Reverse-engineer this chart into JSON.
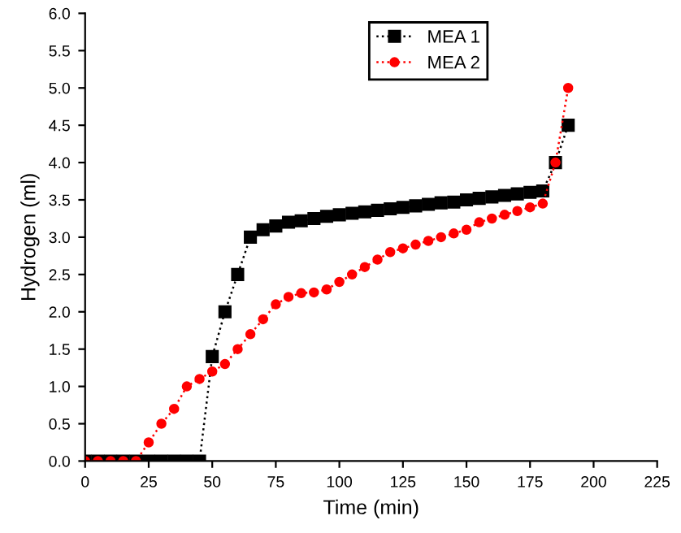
{
  "chart_data": {
    "type": "line",
    "xlabel": "Time (min)",
    "ylabel": "Hydrogen (ml)",
    "x": [
      0,
      5,
      10,
      15,
      20,
      25,
      30,
      35,
      40,
      45,
      50,
      55,
      60,
      65,
      70,
      75,
      80,
      85,
      90,
      95,
      100,
      105,
      110,
      115,
      120,
      125,
      130,
      135,
      140,
      145,
      150,
      155,
      160,
      165,
      170,
      175,
      180,
      185,
      190
    ],
    "series": [
      {
        "name": "MEA 1",
        "color": "#000000",
        "marker": "square",
        "values": [
          0,
          0,
          0,
          0,
          0,
          0,
          0,
          0,
          0,
          0,
          1.4,
          2.0,
          2.5,
          3.0,
          3.1,
          3.15,
          3.2,
          3.22,
          3.25,
          3.28,
          3.3,
          3.32,
          3.34,
          3.36,
          3.38,
          3.4,
          3.42,
          3.44,
          3.46,
          3.47,
          3.5,
          3.52,
          3.54,
          3.56,
          3.58,
          3.6,
          3.62,
          4.0,
          4.5
        ]
      },
      {
        "name": "MEA 2",
        "color": "#ff0000",
        "marker": "circle",
        "values": [
          0,
          0,
          0,
          0,
          0,
          0.25,
          0.5,
          0.7,
          1.0,
          1.1,
          1.2,
          1.3,
          1.5,
          1.7,
          1.9,
          2.1,
          2.2,
          2.25,
          2.26,
          2.3,
          2.4,
          2.5,
          2.6,
          2.7,
          2.8,
          2.85,
          2.9,
          2.95,
          3.0,
          3.05,
          3.1,
          3.2,
          3.25,
          3.3,
          3.35,
          3.4,
          3.45,
          4.0,
          5.0
        ]
      }
    ],
    "line_style": "dotted",
    "xlim": [
      0,
      225
    ],
    "xticks": [
      0,
      25,
      50,
      75,
      100,
      125,
      150,
      175,
      200,
      225
    ],
    "ylim": [
      0,
      6
    ],
    "yticks": [
      {
        "value": 0,
        "label": "0.0"
      },
      0.5,
      {
        "value": 1,
        "label": "1.0"
      },
      1.5,
      {
        "value": 2,
        "label": "2.0"
      },
      2.5,
      {
        "value": 3,
        "label": "3.0"
      },
      3.5,
      {
        "value": 4,
        "label": "4.0"
      },
      4.5,
      {
        "value": 5,
        "label": "5.0"
      },
      5.5,
      {
        "value": 6,
        "label": "6.0"
      }
    ],
    "grid": false,
    "legend": "top"
  }
}
